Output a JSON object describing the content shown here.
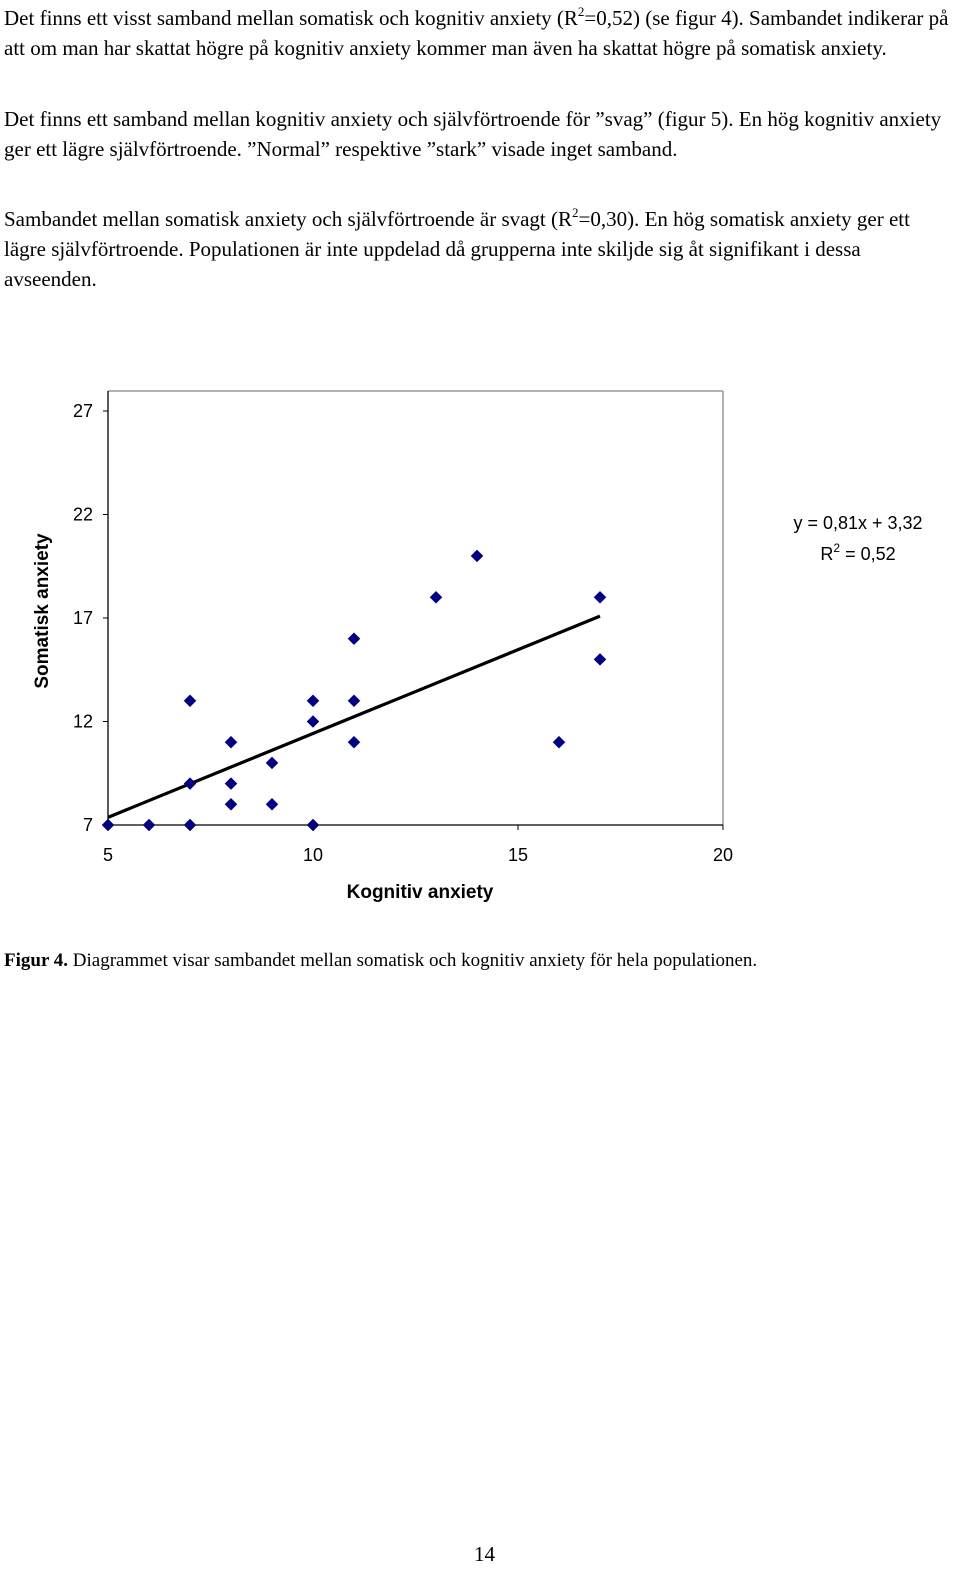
{
  "paragraphs": {
    "p1": {
      "a": "Det finns ett visst samband mellan somatisk och kognitiv anxiety (R",
      "sup": "2",
      "b": "=0,52) (se figur 4). Sambandet indikerar på att om man har skattat högre på kognitiv anxiety kommer man även ha skattat högre på somatisk anxiety."
    },
    "p2": {
      "text": "Det finns ett samband mellan kognitiv anxiety och självförtroende för ”svag” (figur 5). En hög kognitiv anxiety ger ett lägre självförtroende. ”Normal” respektive ”stark” visade inget samband."
    },
    "p3": {
      "a": "Sambandet mellan somatisk anxiety och självförtroende är svagt (R",
      "sup": "2",
      "b": "=0,30). En hög somatisk anxiety ger ett lägre självförtroende. Populationen är inte uppdelad då grupperna inte skiljde sig åt signifikant i dessa avseenden."
    }
  },
  "chart_data": {
    "type": "scatter",
    "title": "",
    "xlabel": "Kognitiv anxiety",
    "ylabel": "Somatisk anxiety",
    "xlim": [
      5,
      20
    ],
    "ylim": [
      7,
      27
    ],
    "xticks": [
      5,
      10,
      15,
      20
    ],
    "yticks": [
      7,
      12,
      17,
      22,
      27
    ],
    "grid": false,
    "series": [
      {
        "name": "observations",
        "marker": "diamond",
        "color": "#000080",
        "points": [
          [
            5,
            7
          ],
          [
            6,
            7
          ],
          [
            7,
            7
          ],
          [
            10,
            7
          ],
          [
            8,
            8
          ],
          [
            9,
            8
          ],
          [
            7,
            9
          ],
          [
            8,
            9
          ],
          [
            9,
            10
          ],
          [
            8,
            11
          ],
          [
            11,
            11
          ],
          [
            16,
            11
          ],
          [
            10,
            12
          ],
          [
            7,
            13
          ],
          [
            10,
            13
          ],
          [
            11,
            13
          ],
          [
            17,
            15
          ],
          [
            11,
            16
          ],
          [
            13,
            18
          ],
          [
            17,
            18
          ],
          [
            14,
            20
          ]
        ]
      }
    ],
    "trendline": {
      "slope": 0.81,
      "intercept": 3.32,
      "x_range": [
        5,
        17
      ],
      "color": "#000000"
    },
    "annotation": {
      "equation": "y = 0,81x + 3,32",
      "r2_prefix": "R",
      "r2_sup": "2",
      "r2_value": " = 0,52",
      "placement": "right of plot, upper"
    }
  },
  "caption": {
    "label": "Figur 4.",
    "text": " Diagrammet visar sambandet mellan somatisk och kognitiv anxiety för hela populationen."
  },
  "page_number": "14"
}
